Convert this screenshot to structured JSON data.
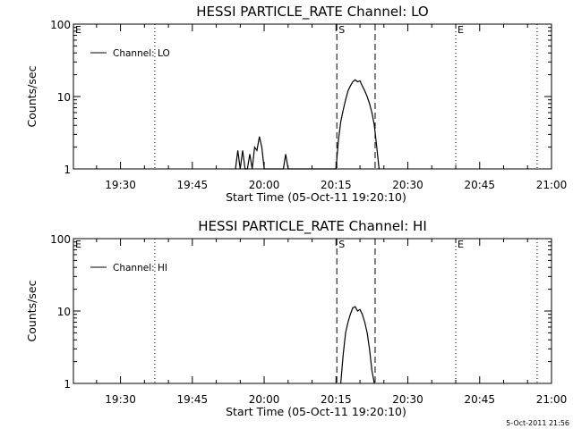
{
  "chart_data": [
    {
      "type": "line",
      "title": "HESSI PARTICLE_RATE Channel: LO",
      "xlabel": "Start Time (05-Oct-11 19:20:10)",
      "ylabel": "Counts/sec",
      "yscale": "log",
      "xlim": [
        "19:20:10",
        "21:00"
      ],
      "ylim": [
        1,
        100
      ],
      "x_ticks": [
        "19:30",
        "19:45",
        "20:00",
        "20:15",
        "20:30",
        "20:45",
        "21:00"
      ],
      "y_ticks": [
        "1",
        "10",
        "100"
      ],
      "legend": {
        "position": "top-left",
        "entries": [
          "Channel: LO"
        ]
      },
      "series": [
        {
          "name": "Channel: LO",
          "x": [
            "19:54:00",
            "19:54:30",
            "19:55:00",
            "19:55:30",
            "19:56:00",
            "19:56:30",
            "19:57:00",
            "19:57:30",
            "19:58:00",
            "19:58:30",
            "19:59:00",
            "19:59:30",
            "20:00:00",
            "20:00:30",
            "20:01:00",
            "20:01:30",
            "20:02:00",
            "20:02:30",
            "20:03:00",
            "20:03:30",
            "20:04:00",
            "20:04:30",
            "20:05:00",
            "20:05:30",
            "20:06:00",
            "20:15:00",
            "20:15:30",
            "20:16:00",
            "20:16:30",
            "20:17:00",
            "20:17:30",
            "20:18:00",
            "20:18:30",
            "20:19:00",
            "20:19:30",
            "20:20:00",
            "20:20:30",
            "20:21:00",
            "20:21:30",
            "20:22:00",
            "20:22:30",
            "20:23:00",
            "20:23:30",
            "20:24:00"
          ],
          "values": [
            1,
            1.8,
            1,
            1.8,
            1,
            1,
            1.6,
            1,
            2.0,
            1.8,
            2.8,
            2.0,
            1,
            1,
            1,
            1,
            1,
            1,
            1,
            1,
            1,
            1.6,
            1,
            1,
            1,
            1,
            2.5,
            4.5,
            6.5,
            9,
            12,
            14,
            16,
            17,
            16,
            16.5,
            14,
            12,
            10,
            8,
            6,
            4,
            2,
            1
          ]
        }
      ],
      "annotations": [
        {
          "label": "E",
          "x": "19:20:10"
        },
        {
          "label": "S",
          "x": "20:15:10",
          "style": "dashed"
        },
        {
          "x": "20:23:10",
          "style": "dashed"
        },
        {
          "x": "19:37:10",
          "style": "dotted"
        },
        {
          "label": "E",
          "x": "20:40:00",
          "style": "dotted"
        },
        {
          "x": "20:57:00",
          "style": "dotted"
        }
      ]
    },
    {
      "type": "line",
      "title": "HESSI PARTICLE_RATE Channel: HI",
      "xlabel": "Start Time (05-Oct-11 19:20:10)",
      "ylabel": "Counts/sec",
      "yscale": "log",
      "xlim": [
        "19:20:10",
        "21:00"
      ],
      "ylim": [
        1,
        100
      ],
      "x_ticks": [
        "19:30",
        "19:45",
        "20:00",
        "20:15",
        "20:30",
        "20:45",
        "21:00"
      ],
      "y_ticks": [
        "1",
        "10",
        "100"
      ],
      "legend": {
        "position": "top-left",
        "entries": [
          "Channel: HI"
        ]
      },
      "series": [
        {
          "name": "Channel: HI",
          "x": [
            "20:16:00",
            "20:16:30",
            "20:17:00",
            "20:17:30",
            "20:18:00",
            "20:18:30",
            "20:19:00",
            "20:19:30",
            "20:20:00",
            "20:20:30",
            "20:21:00",
            "20:21:30",
            "20:22:00",
            "20:22:30",
            "20:23:00"
          ],
          "values": [
            1,
            2.5,
            5,
            7,
            9,
            11,
            11.5,
            10,
            10.5,
            9,
            7,
            5,
            3,
            1.5,
            1
          ]
        }
      ],
      "annotations": [
        {
          "label": "E",
          "x": "19:20:10"
        },
        {
          "label": "S",
          "x": "20:15:10",
          "style": "dashed"
        },
        {
          "x": "20:23:10",
          "style": "dashed"
        },
        {
          "x": "19:37:10",
          "style": "dotted"
        },
        {
          "label": "E",
          "x": "20:40:00",
          "style": "dotted"
        },
        {
          "x": "20:57:00",
          "style": "dotted"
        }
      ]
    }
  ],
  "footer": {
    "stamp": "5-Oct-2011 21:56"
  }
}
